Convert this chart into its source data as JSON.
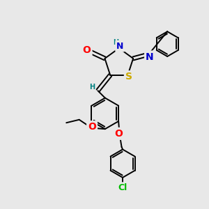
{
  "background_color": "#e8e8e8",
  "bond_color": "#000000",
  "bond_width": 1.4,
  "atom_colors": {
    "O": "#ff0000",
    "N": "#0000cd",
    "S": "#ccaa00",
    "Cl": "#00bb00",
    "H": "#008080",
    "C": "#000000"
  },
  "figsize": [
    3.0,
    3.0
  ],
  "dpi": 100
}
